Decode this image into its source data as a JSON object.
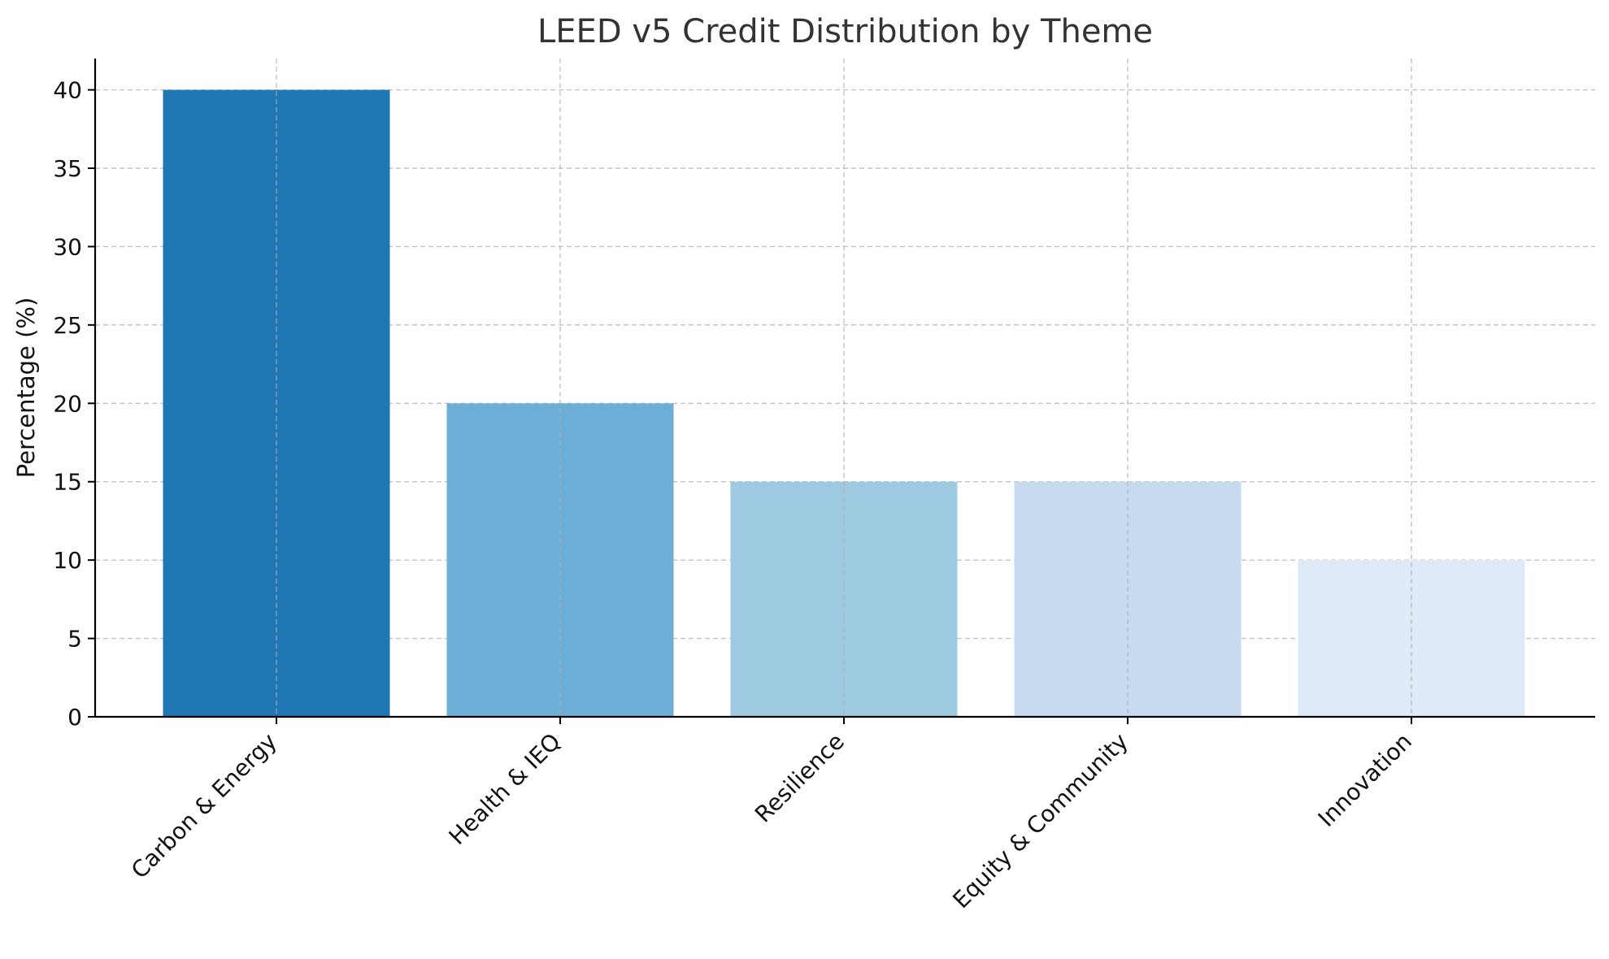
{
  "chart_data": {
    "type": "bar",
    "title": "LEED v5 Credit Distribution by Theme",
    "xlabel": "",
    "ylabel": "Percentage (%)",
    "categories": [
      "Carbon & Energy",
      "Health & IEQ",
      "Resilience",
      "Equity & Community",
      "Innovation"
    ],
    "values": [
      40,
      20,
      15,
      15,
      10
    ],
    "colors": [
      "#1f77b4",
      "#6baed6",
      "#9ecae1",
      "#c6dbef",
      "#deebf7"
    ],
    "ylim": [
      0,
      42
    ],
    "yticks": [
      0,
      5,
      10,
      15,
      20,
      25,
      30,
      35,
      40
    ],
    "grid": true,
    "legend": "none"
  }
}
